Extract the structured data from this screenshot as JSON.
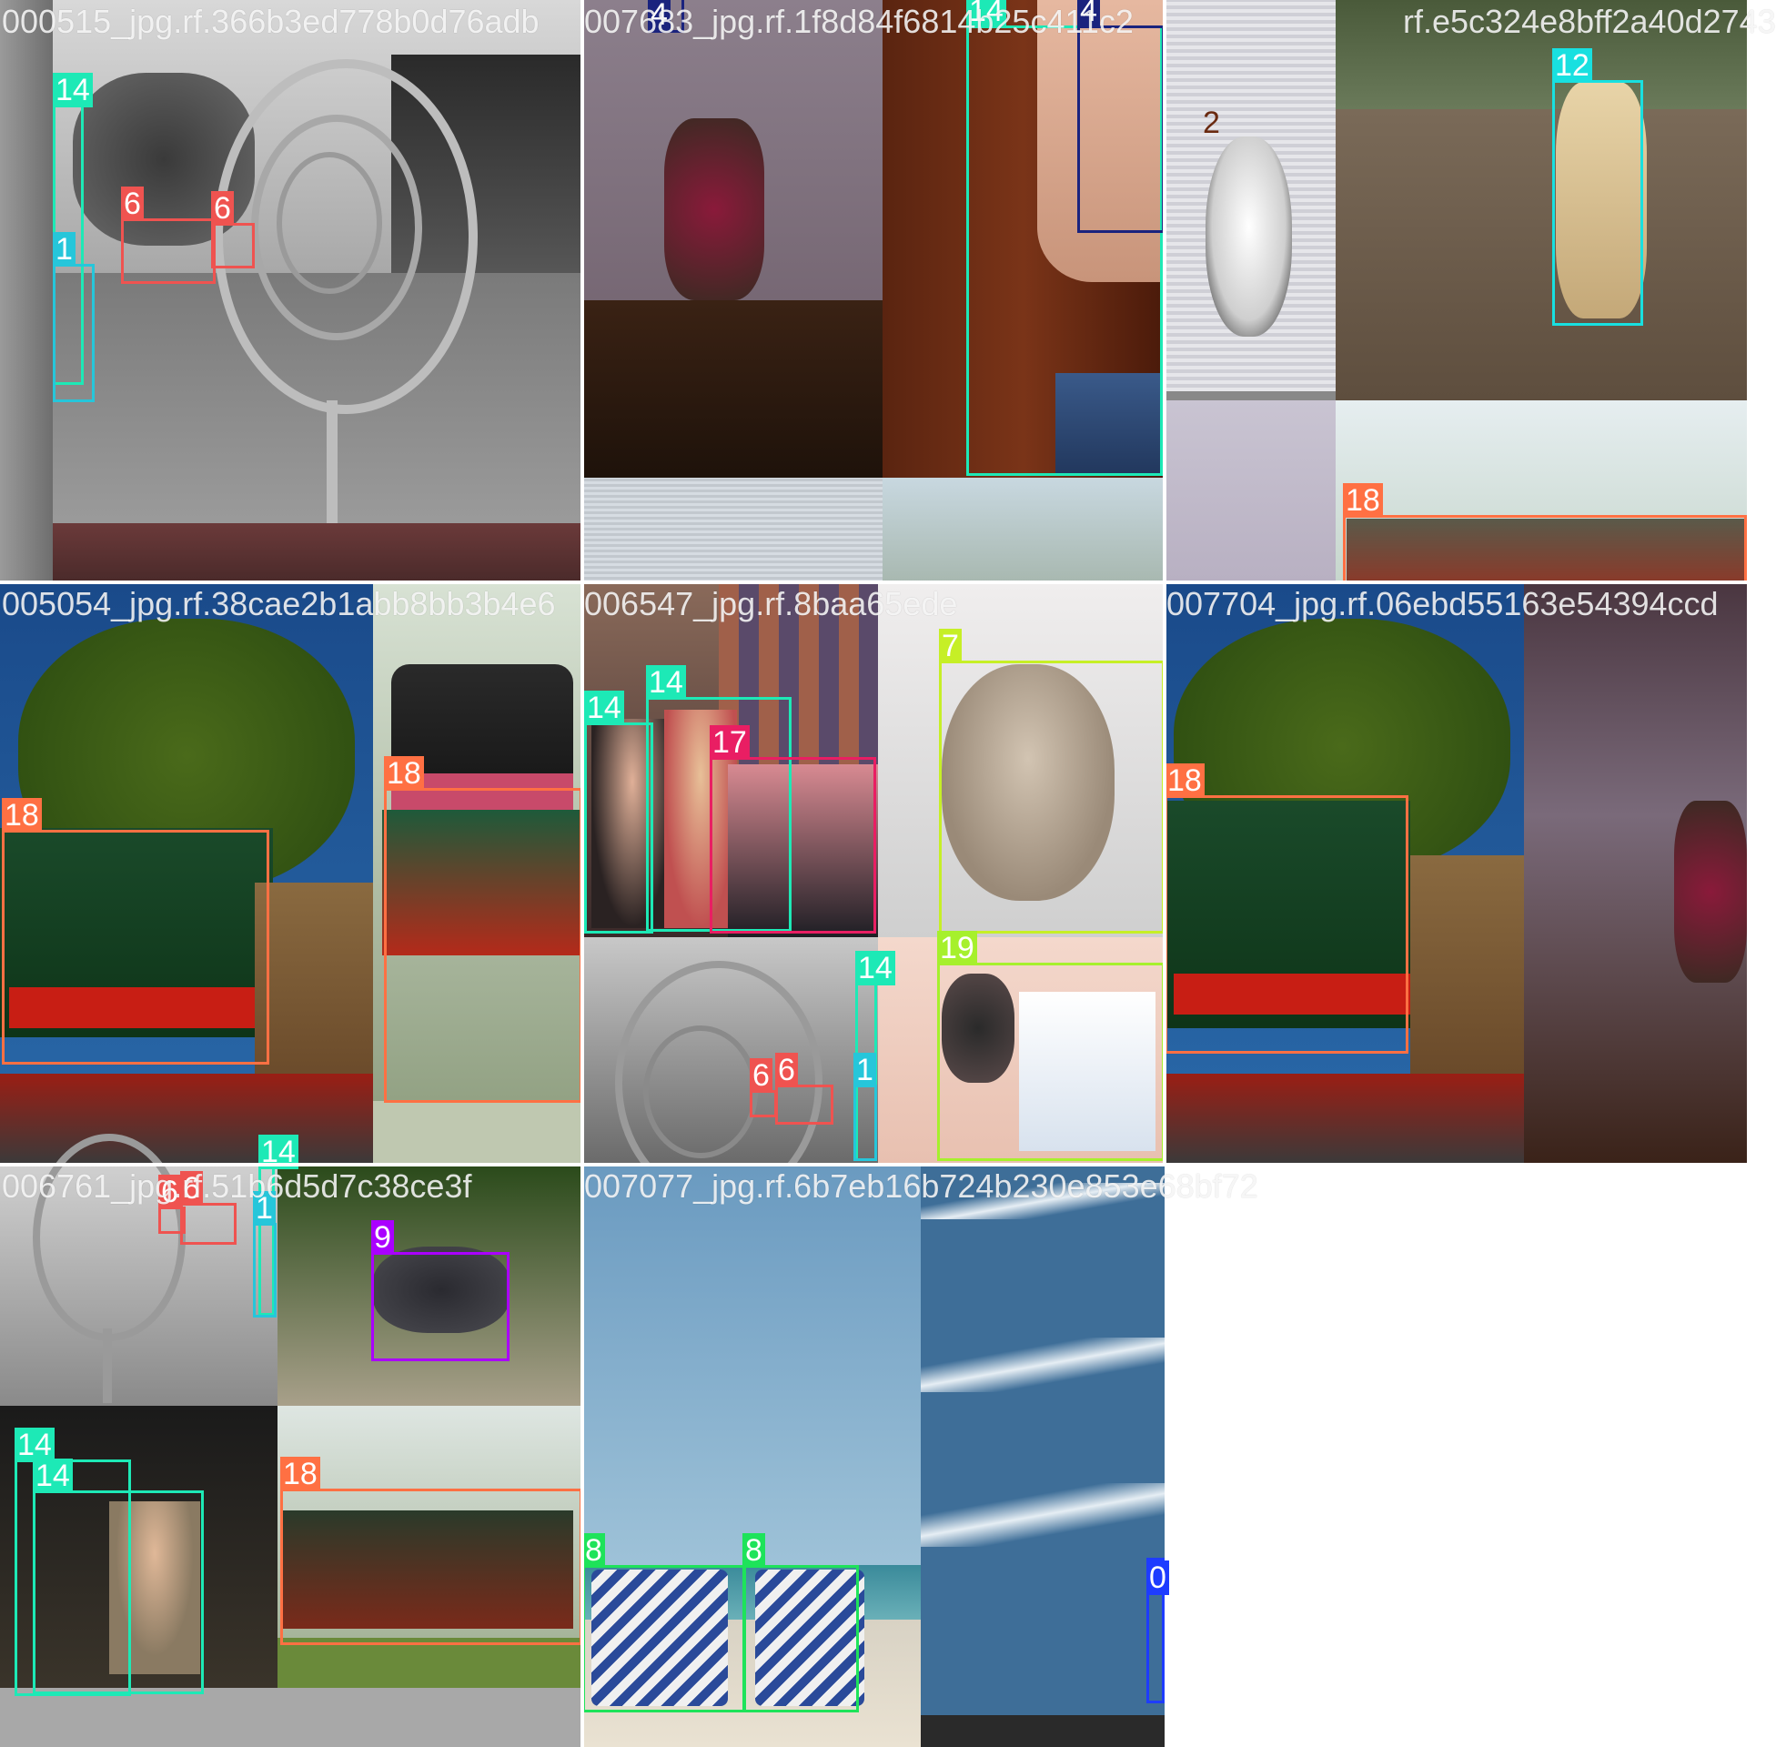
{
  "mosaic": {
    "tiles": [
      {
        "title": "000515_jpg.rf.366b3ed778b0d76adb",
        "boxes": [
          {
            "cls": "14",
            "color": "#1de9b6"
          },
          {
            "cls": "1",
            "color": "#26c6da"
          },
          {
            "cls": "6",
            "color": "#ef5350"
          },
          {
            "cls": "6",
            "color": "#ef5350"
          }
        ]
      },
      {
        "title": "007683_jpg.rf.1f8d84f6814b25c411c2",
        "boxes": [
          {
            "cls": "4",
            "color": "#1a237e"
          },
          {
            "cls": "14",
            "color": "#1de9b6"
          },
          {
            "cls": "4",
            "color": "#1a237e"
          }
        ]
      },
      {
        "title": "rf.e5c324e8bff2a40d2743",
        "plain": "2",
        "boxes": [
          {
            "cls": "12",
            "color": "#18e0e0"
          },
          {
            "cls": "18",
            "color": "#ff7043"
          }
        ]
      },
      {
        "title": "005054_jpg.rf.38cae2b1abb8bb3b4e6",
        "boxes": [
          {
            "cls": "18",
            "color": "#ff7043"
          },
          {
            "cls": "18",
            "color": "#ff7043"
          }
        ]
      },
      {
        "title": "006547_jpg.rf.8baa65ede",
        "boxes": [
          {
            "cls": "14",
            "color": "#1de9b6"
          },
          {
            "cls": "14",
            "color": "#1de9b6"
          },
          {
            "cls": "17",
            "color": "#e91e63"
          },
          {
            "cls": "7",
            "color": "#c6ef26"
          },
          {
            "cls": "14",
            "color": "#1de9b6"
          },
          {
            "cls": "6",
            "color": "#ef5350"
          },
          {
            "cls": "6",
            "color": "#ef5350"
          },
          {
            "cls": "1",
            "color": "#26c6da"
          },
          {
            "cls": "19",
            "color": "#a6f02c"
          }
        ]
      },
      {
        "title": "007704_jpg.rf.06ebd55163e54394ccd",
        "boxes": [
          {
            "cls": "18",
            "color": "#ff7043"
          }
        ]
      },
      {
        "title": "006761_jpg.rf.51b6d5d7c38ce3f",
        "boxes": [
          {
            "cls": "6",
            "color": "#ef5350"
          },
          {
            "cls": "6",
            "color": "#ef5350"
          },
          {
            "cls": "14",
            "color": "#1de9b6"
          },
          {
            "cls": "1",
            "color": "#26c6da"
          },
          {
            "cls": "9",
            "color": "#aa00ff"
          },
          {
            "cls": "14",
            "color": "#1de9b6"
          },
          {
            "cls": "14",
            "color": "#1de9b6"
          },
          {
            "cls": "18",
            "color": "#ff7043"
          }
        ]
      },
      {
        "title": "007077_jpg.rf.6b7eb16b724b230e853e68bf72",
        "boxes": [
          {
            "cls": "8",
            "color": "#1ee35a"
          },
          {
            "cls": "8",
            "color": "#1ee35a"
          },
          {
            "cls": "0",
            "color": "#1e3cff"
          }
        ]
      }
    ]
  }
}
